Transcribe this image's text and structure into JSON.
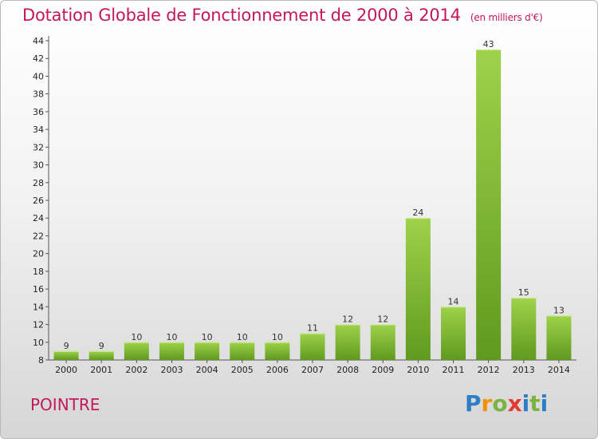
{
  "title": "Dotation Globale de Fonctionnement de 2000 à 2014",
  "unit": "(en milliers d'€)",
  "commune": "POINTRE",
  "logo": {
    "letters": [
      "P",
      "r",
      "o",
      "x",
      "i",
      "t",
      "i"
    ],
    "colors": [
      "#2e7dc6",
      "#f39200",
      "#7cb342",
      "#e53935",
      "#2e7dc6",
      "#7cb342",
      "#2e7dc6"
    ]
  },
  "colors": {
    "title": "#c2185b",
    "bar_top": "#9fd24a",
    "bar_bottom": "#5f9a1f"
  },
  "chart_data": {
    "type": "bar",
    "title": "Dotation Globale de Fonctionnement de 2000 à 2014",
    "subtitle": "(en milliers d'€)",
    "categories": [
      "2000",
      "2001",
      "2002",
      "2003",
      "2004",
      "2005",
      "2006",
      "2007",
      "2008",
      "2009",
      "2010",
      "2011",
      "2012",
      "2013",
      "2014"
    ],
    "values": [
      9,
      9,
      10,
      10,
      10,
      10,
      10,
      11,
      12,
      12,
      24,
      14,
      43,
      15,
      13
    ],
    "ylim": [
      8,
      44
    ],
    "yticks": [
      8,
      10,
      12,
      14,
      16,
      18,
      20,
      22,
      24,
      26,
      28,
      30,
      32,
      34,
      36,
      38,
      40,
      42,
      44
    ],
    "xlabel": "",
    "ylabel": "",
    "grid": false,
    "legend": "none"
  }
}
